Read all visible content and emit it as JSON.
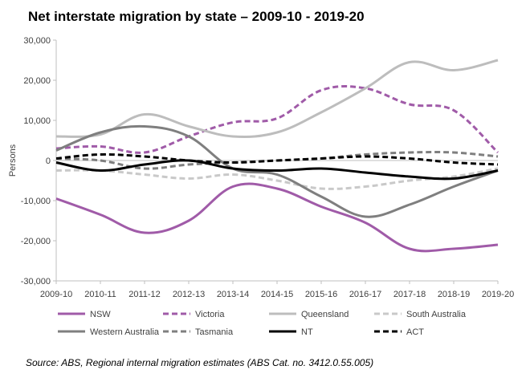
{
  "chart_data": {
    "type": "line",
    "title": "Net interstate migration by state – 2009-10 - 2019-20",
    "xlabel": "",
    "ylabel": "Persons",
    "ylim": [
      -30000,
      30000
    ],
    "yticks": [
      30000,
      20000,
      10000,
      0,
      -10000,
      -20000,
      -30000
    ],
    "ytick_labels": [
      "30,000",
      "20,000",
      "10,000",
      "0",
      "-10,000",
      "-20,000",
      "-30,000"
    ],
    "grid": false,
    "legend_position": "bottom",
    "categories": [
      "2009-10",
      "2010-11",
      "2011-12",
      "2012-13",
      "2013-14",
      "2014-15",
      "2015-16",
      "2016-17",
      "2017-18",
      "2018-19",
      "2019-20"
    ],
    "series": [
      {
        "name": "NSW",
        "color": "#a05ba8",
        "dash": "solid",
        "width": 3,
        "values": [
          -9500,
          -13500,
          -18000,
          -15000,
          -6500,
          -7000,
          -11500,
          -15500,
          -22000,
          -22000,
          -21000
        ]
      },
      {
        "name": "Victoria",
        "color": "#a05ba8",
        "dash": "dashed",
        "width": 3,
        "values": [
          3000,
          3500,
          2000,
          6000,
          9500,
          10500,
          17500,
          18000,
          14000,
          12500,
          2000
        ]
      },
      {
        "name": "Queensland",
        "color": "#bdbdbd",
        "dash": "solid",
        "width": 3,
        "values": [
          6000,
          6500,
          11500,
          8500,
          6000,
          7000,
          12000,
          18000,
          24500,
          22500,
          25000
        ]
      },
      {
        "name": "South Australia",
        "color": "#c9c9c9",
        "dash": "dashed",
        "width": 3,
        "values": [
          -2500,
          -2500,
          -3500,
          -4500,
          -3500,
          -5000,
          -7000,
          -6500,
          -5000,
          -4000,
          -2000
        ]
      },
      {
        "name": "Western Australia",
        "color": "#7f7f7f",
        "dash": "solid",
        "width": 3,
        "values": [
          2500,
          7000,
          8500,
          6000,
          -2000,
          -3500,
          -9000,
          -14000,
          -11000,
          -6500,
          -2500
        ]
      },
      {
        "name": "Tasmania",
        "color": "#7f7f7f",
        "dash": "dashed",
        "width": 3,
        "values": [
          500,
          0,
          -2000,
          -1000,
          -500,
          0,
          500,
          1500,
          2000,
          2000,
          1000
        ]
      },
      {
        "name": "NT",
        "color": "#000000",
        "dash": "solid",
        "width": 3,
        "values": [
          -500,
          -2500,
          -1000,
          0,
          -2000,
          -2500,
          -2000,
          -3000,
          -4000,
          -4500,
          -2500
        ]
      },
      {
        "name": "ACT",
        "color": "#000000",
        "dash": "dashed",
        "width": 3,
        "values": [
          500,
          1500,
          1000,
          0,
          -500,
          0,
          500,
          1000,
          500,
          -500,
          -1000
        ]
      }
    ]
  },
  "source_text": "Source:  ABS, Regional internal migration estimates (ABS Cat. no. 3412.0.55.005)"
}
